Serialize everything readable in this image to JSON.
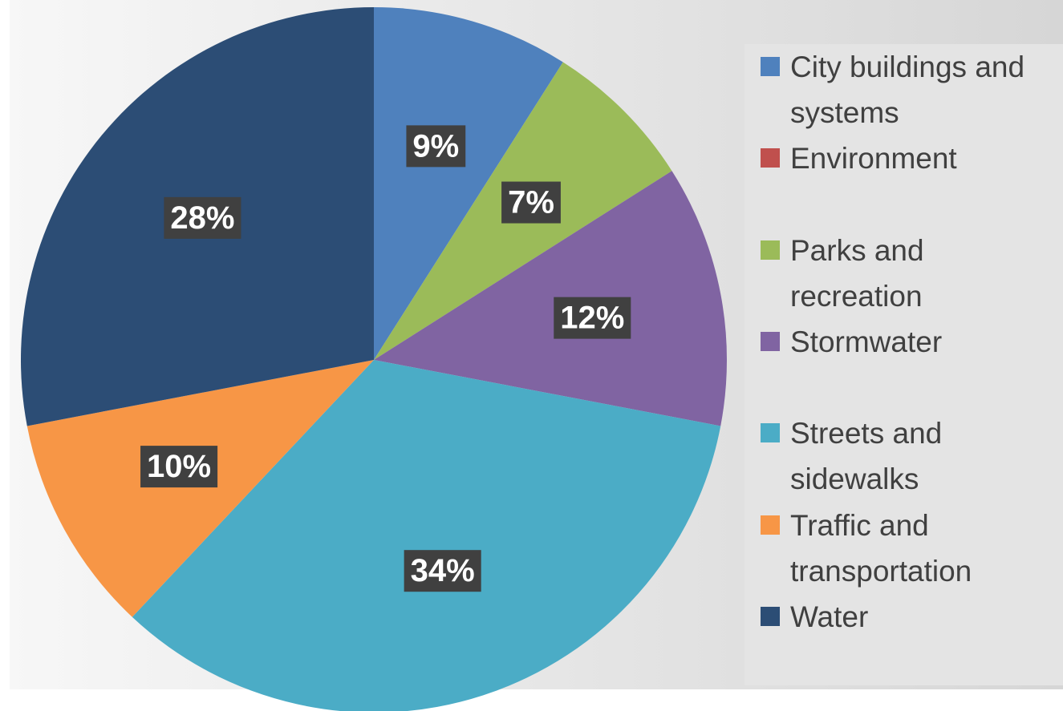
{
  "chart_data": {
    "type": "pie",
    "categories": [
      "City buildings and systems",
      "Environment",
      "Parks and recreation",
      "Stormwater",
      "Streets and sidewalks",
      "Traffic and transportation",
      "Water"
    ],
    "values": [
      9,
      0,
      7,
      12,
      34,
      10,
      28
    ],
    "value_labels": [
      "9%",
      null,
      "7%",
      "12%",
      "34%",
      "10%",
      "28%"
    ],
    "colors": [
      "#4f81bd",
      "#c0504d",
      "#9bbb59",
      "#8064a2",
      "#4bacc6",
      "#f79646",
      "#2c4d75"
    ],
    "legend": "right"
  }
}
